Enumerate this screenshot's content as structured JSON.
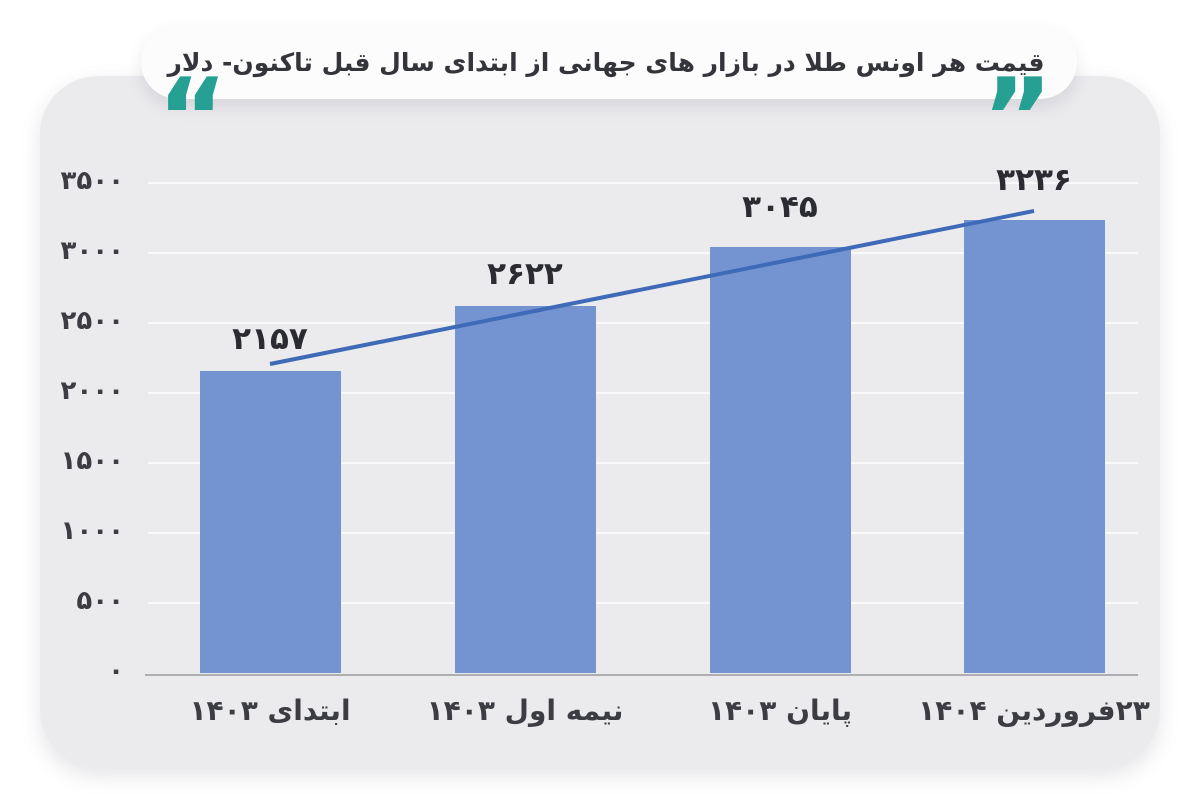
{
  "header": {
    "title": "قیمت هر اونس طلا در بازار های جهانی از ابتدای سال قبل تاکنون- دلار",
    "quote_open": "“",
    "quote_close": "”"
  },
  "colors": {
    "accent_teal": "#27a094",
    "bar_fill": "#7494d1",
    "trend_line": "#3f6ab8",
    "card_background": "#ebebee",
    "pill_background": "#fcfcfd",
    "baseline": "#adadb2",
    "text_dark": "#34343b"
  },
  "chart_data": {
    "type": "bar",
    "title": "قیمت هر اونس طلا در بازار های جهانی از ابتدای سال قبل تاکنون- دلار",
    "unit_label": "دلار",
    "categories": [
      "ابتدای ۱۴۰۳",
      "نیمه اول ۱۴۰۳",
      "پایان ۱۴۰۳",
      "۲۳فروردین ۱۴۰۴"
    ],
    "values": [
      2157,
      2622,
      3045,
      3236
    ],
    "value_labels": [
      "۲۱۵۷",
      "۲۶۲۲",
      "۳۰۴۵",
      "۳۲۳۶"
    ],
    "ylim": [
      0,
      3500
    ],
    "y_ticks": [
      0,
      500,
      1000,
      1500,
      2000,
      2500,
      3000,
      3500
    ],
    "y_tick_labels": [
      "۰",
      "۵۰۰",
      "۱۰۰۰",
      "۱۵۰۰",
      "۲۰۰۰",
      "۲۵۰۰",
      "۳۰۰۰",
      "۳۵۰۰"
    ],
    "grid": "faint-horizontal",
    "legend": "none",
    "trend_line": {
      "style": "straight",
      "from_index": 0,
      "to_index": 3
    }
  }
}
